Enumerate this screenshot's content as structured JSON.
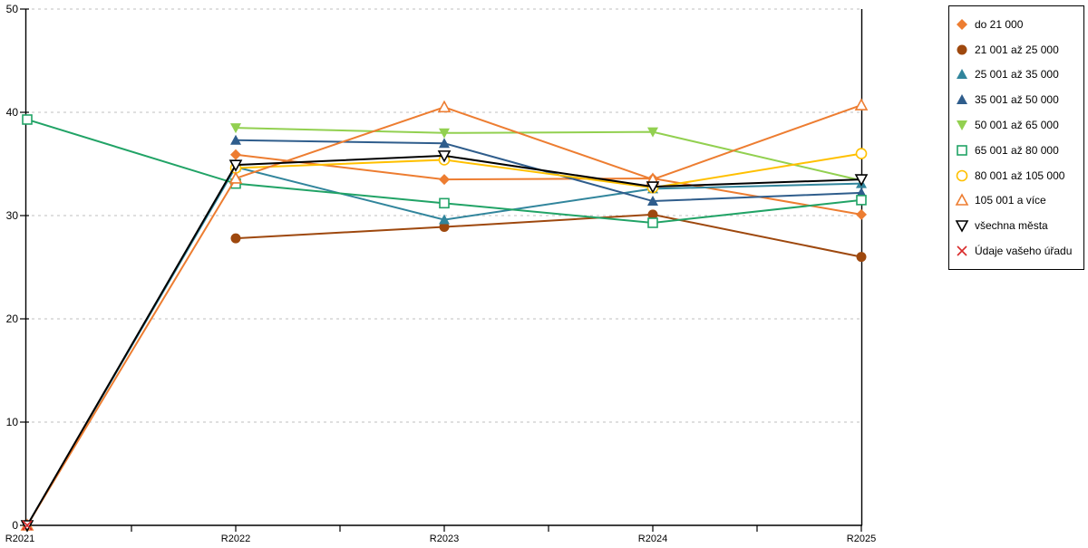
{
  "chart_data": {
    "type": "line",
    "title": "",
    "xlabel": "",
    "ylabel": "",
    "x_categories": [
      "R2021",
      "R2022",
      "R2023",
      "R2024",
      "R2025"
    ],
    "ylim": [
      0,
      50
    ],
    "yticks": [
      0,
      10,
      20,
      30,
      40,
      50
    ],
    "grid": "horizontal-dashed",
    "legend_position": "top-right",
    "series": [
      {
        "name": "do 21 000",
        "color": "#ED7D31",
        "marker": "diamond-filled",
        "values": [
          null,
          35.9,
          33.5,
          33.6,
          30.1
        ]
      },
      {
        "name": "21 001 až 25 000",
        "color": "#9E480E",
        "marker": "circle-filled",
        "values": [
          null,
          27.8,
          28.9,
          30.1,
          26.0
        ]
      },
      {
        "name": "25 001 až 35 000",
        "color": "#31859C",
        "marker": "triangle-up-filled",
        "values": [
          0,
          34.7,
          29.6,
          32.6,
          33.1
        ]
      },
      {
        "name": "35 001 až 50 000",
        "color": "#2F5D8C",
        "marker": "triangle-up-filled",
        "values": [
          null,
          37.3,
          37.0,
          31.4,
          32.2
        ]
      },
      {
        "name": "50 001 až 65 000",
        "color": "#92D050",
        "marker": "triangle-down-filled",
        "values": [
          null,
          38.5,
          38.0,
          38.1,
          33.4
        ]
      },
      {
        "name": "65 001 až 80 000",
        "color": "#21A366",
        "marker": "square-open",
        "values": [
          39.3,
          33.1,
          31.2,
          29.3,
          31.5
        ]
      },
      {
        "name": "80 001 až 105 000",
        "color": "#FFC000",
        "marker": "circle-open",
        "values": [
          null,
          34.6,
          35.4,
          32.7,
          36.0
        ]
      },
      {
        "name": "105 001 a více",
        "color": "#ED7D31",
        "marker": "triangle-up-open",
        "values": [
          0,
          33.6,
          40.5,
          33.5,
          40.7
        ]
      },
      {
        "name": "všechna města",
        "color": "#000000",
        "marker": "triangle-down-open",
        "values": [
          0,
          34.9,
          35.8,
          32.8,
          33.5
        ]
      },
      {
        "name": "Údaje vašeho úřadu",
        "color": "#D92B2B",
        "marker": "x",
        "values": [
          0,
          null,
          null,
          null,
          null
        ]
      }
    ],
    "colors": {
      "grid": "#BFBFBF",
      "axis": "#000000",
      "background": "#FFFFFF"
    }
  }
}
